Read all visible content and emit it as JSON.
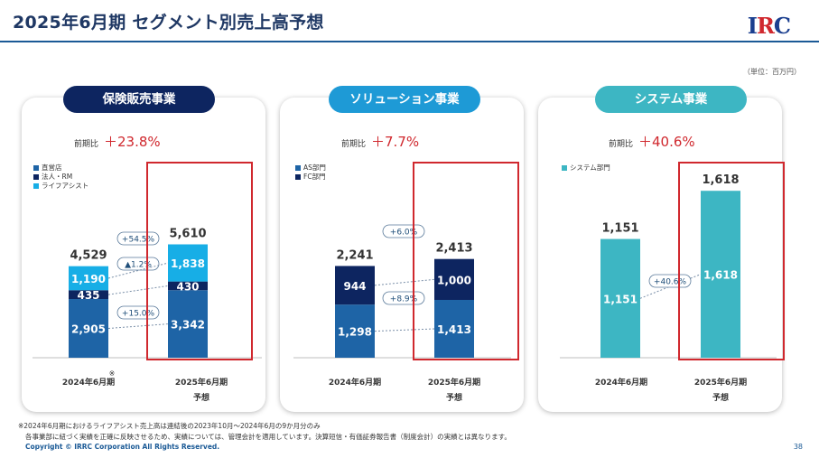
{
  "header": {
    "title": "2025年6月期 セグメント別売上高予想",
    "logo": "IRC"
  },
  "unit_note": "（単位：百万円）",
  "colors": {
    "navy": "#0d2560",
    "mid_blue": "#1e64a6",
    "light_blue": "#17aee6",
    "teal": "#3db6c3",
    "red": "#d0282e",
    "title_blue": "#1f3864"
  },
  "segments": [
    {
      "pill": "保険販売事業",
      "growth_label": "前期比",
      "growth_value": "＋23.8%",
      "legend": [
        "直営店",
        "法人・RM",
        "ライフアシスト"
      ]
    },
    {
      "pill": "ソリューション事業",
      "growth_label": "前期比",
      "growth_value": "＋7.7%",
      "legend": [
        "AS部門",
        "FC部門"
      ]
    },
    {
      "pill": "システム事業",
      "growth_label": "前期比",
      "growth_value": "＋40.6%",
      "legend": [
        "システム部門"
      ]
    }
  ],
  "chart_data": [
    {
      "type": "bar",
      "stacked": true,
      "categories": [
        "2024年6月期",
        "2025年6月期"
      ],
      "category_subtitles": [
        "",
        "予想"
      ],
      "category_marks": [
        "※",
        ""
      ],
      "series": [
        {
          "name": "直営店",
          "values": [
            2905,
            3342
          ],
          "color": "#1e64a6"
        },
        {
          "name": "法人・RM",
          "values": [
            435,
            430
          ],
          "color": "#0d2560"
        },
        {
          "name": "ライフアシスト",
          "values": [
            1190,
            1838
          ],
          "color": "#17aee6"
        }
      ],
      "totals": [
        4529,
        5610
      ],
      "change_labels": [
        "+15.0%",
        "▲1.2%",
        "+54.5%"
      ]
    },
    {
      "type": "bar",
      "stacked": true,
      "categories": [
        "2024年6月期",
        "2025年6月期"
      ],
      "category_subtitles": [
        "",
        "予想"
      ],
      "category_marks": [
        "",
        ""
      ],
      "series": [
        {
          "name": "AS部門",
          "values": [
            1298,
            1413
          ],
          "color": "#1e64a6"
        },
        {
          "name": "FC部門",
          "values": [
            944,
            1000
          ],
          "color": "#0d2560"
        }
      ],
      "totals": [
        2241,
        2413
      ],
      "change_labels": [
        "+8.9%",
        "+6.0%"
      ]
    },
    {
      "type": "bar",
      "stacked": false,
      "categories": [
        "2024年6月期",
        "2025年6月期"
      ],
      "category_subtitles": [
        "",
        "予想"
      ],
      "category_marks": [
        "",
        ""
      ],
      "series": [
        {
          "name": "システム部門",
          "values": [
            1151,
            1618
          ],
          "color": "#3db6c3"
        }
      ],
      "totals": [
        1151,
        1618
      ],
      "change_labels": [
        "+40.6%"
      ]
    }
  ],
  "footnotes": [
    "※2024年6月期におけるライフアシスト売上高は連結後の2023年10月～2024年6月の9か月分のみ",
    "各事業部に紐づく実績を正確に反映させるため、実績については、管理会計を適用しています。決算短信・有価証券報告書（制度会計）の実績とは異なります。"
  ],
  "copyright": "Copyright © IRRC Corporation All Rights Reserved.",
  "page_number": "38"
}
